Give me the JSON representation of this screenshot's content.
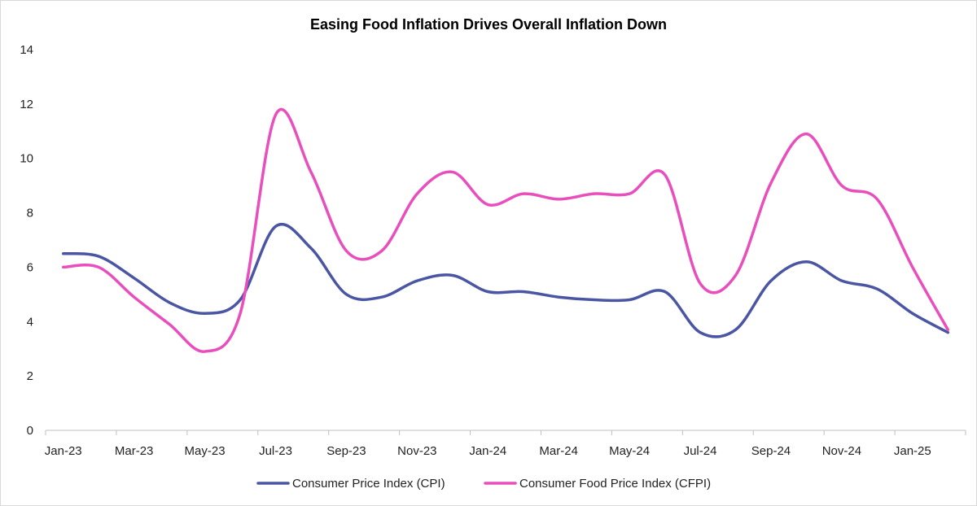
{
  "chart_data": {
    "type": "line",
    "title": "Easing Food Inflation Drives Overall Inflation Down",
    "xlabel": "",
    "ylabel": "",
    "ylim": [
      0,
      14
    ],
    "yticks": [
      0,
      2,
      4,
      6,
      8,
      10,
      12,
      14
    ],
    "grid": false,
    "legend_position": "bottom",
    "x": [
      "Jan-23",
      "Feb-23",
      "Mar-23",
      "Apr-23",
      "May-23",
      "Jun-23",
      "Jul-23",
      "Aug-23",
      "Sep-23",
      "Oct-23",
      "Nov-23",
      "Dec-23",
      "Jan-24",
      "Feb-24",
      "Mar-24",
      "Apr-24",
      "May-24",
      "Jun-24",
      "Jul-24",
      "Aug-24",
      "Sep-24",
      "Oct-24",
      "Nov-24",
      "Dec-24",
      "Jan-25",
      "Feb-25"
    ],
    "xtick_labels": [
      "Jan-23",
      "Mar-23",
      "May-23",
      "Jul-23",
      "Sep-23",
      "Nov-23",
      "Jan-24",
      "Mar-24",
      "May-24",
      "Jul-24",
      "Sep-24",
      "Nov-24",
      "Jan-25"
    ],
    "series": [
      {
        "name": "Consumer Price Index (CPI)",
        "color": "#4a56a3",
        "values": [
          6.5,
          6.4,
          5.6,
          4.7,
          4.3,
          4.8,
          7.5,
          6.7,
          5.0,
          4.9,
          5.5,
          5.7,
          5.1,
          5.1,
          4.9,
          4.8,
          4.8,
          5.1,
          3.6,
          3.7,
          5.5,
          6.2,
          5.5,
          5.2,
          4.3,
          3.6
        ]
      },
      {
        "name": "Consumer Food Price Index (CFPI)",
        "color": "#e84fbd",
        "values": [
          6.0,
          6.0,
          4.9,
          3.9,
          2.9,
          4.3,
          11.6,
          9.5,
          6.6,
          6.6,
          8.7,
          9.5,
          8.3,
          8.7,
          8.5,
          8.7,
          8.7,
          9.4,
          5.4,
          5.7,
          9.1,
          10.9,
          9.0,
          8.5,
          6.0,
          3.7
        ]
      }
    ]
  }
}
